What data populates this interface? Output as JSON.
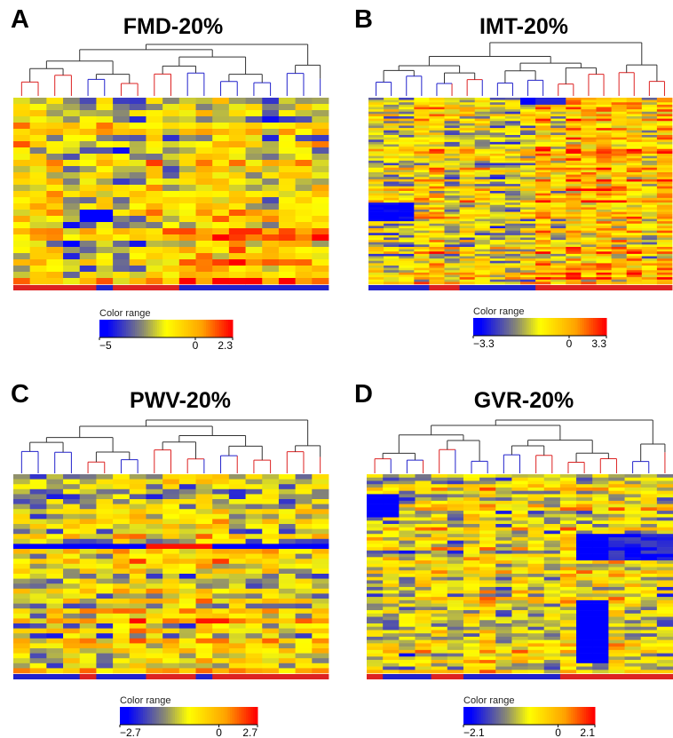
{
  "colors": {
    "low": "#0000ff",
    "midlow": "#8a8a72",
    "mid": "#ffff00",
    "high1": "#ffa200",
    "high2": "#ff0000",
    "group_red": "#dd2222",
    "group_blue": "#2222cc",
    "dendro_line": "#333333"
  },
  "legend_label": "Color range",
  "chart_data": [
    {
      "type": "heatmap",
      "panel_letter": "A",
      "title": "FMD-20%",
      "n_rows": 30,
      "n_cols": 19,
      "color_range": [
        -5,
        2.3
      ],
      "legend_ticks": [
        {
          "value": -5,
          "label": "−5"
        },
        {
          "value": 0,
          "label": "0"
        },
        {
          "value": 2.3,
          "label": "2.3"
        }
      ],
      "column_groups": [
        "red",
        "red",
        "red",
        "red",
        "red",
        "blue",
        "red",
        "red",
        "red",
        "red",
        "blue",
        "blue",
        "blue",
        "blue",
        "blue",
        "blue",
        "blue",
        "blue",
        "blue"
      ],
      "dendrogram_leaf_colors": [
        "red",
        "red",
        "red",
        "red",
        "blue",
        "blue",
        "red",
        "red",
        "red",
        "red",
        "blue",
        "blue",
        "blue",
        "blue",
        "blue",
        "blue",
        "blue",
        "blue",
        "blue"
      ],
      "seed": 11
    },
    {
      "type": "heatmap",
      "panel_letter": "B",
      "title": "IMT-20%",
      "n_rows": 80,
      "n_cols": 20,
      "color_range": [
        -3.3,
        3.3
      ],
      "legend_ticks": [
        {
          "value": -3.3,
          "label": "−3.3"
        },
        {
          "value": 0,
          "label": "0"
        },
        {
          "value": 3.3,
          "label": "3.3"
        }
      ],
      "column_groups": [
        "blue",
        "blue",
        "blue",
        "blue",
        "red",
        "red",
        "blue",
        "blue",
        "blue",
        "blue",
        "blue",
        "red",
        "red",
        "red",
        "red",
        "red",
        "red",
        "red",
        "red",
        "red"
      ],
      "dendrogram_leaf_colors": [
        "blue",
        "blue",
        "blue",
        "blue",
        "blue",
        "red",
        "red",
        "blue",
        "blue",
        "blue",
        "blue",
        "blue",
        "red",
        "red",
        "red",
        "red",
        "red",
        "red",
        "red",
        "red"
      ],
      "seed": 23
    },
    {
      "type": "heatmap",
      "panel_letter": "C",
      "title": "PWV-20%",
      "n_rows": 40,
      "n_cols": 19,
      "color_range": [
        -2.7,
        2.7
      ],
      "legend_ticks": [
        {
          "value": -2.7,
          "label": "−2.7"
        },
        {
          "value": 0,
          "label": "0"
        },
        {
          "value": 2.7,
          "label": "2.7"
        }
      ],
      "column_groups": [
        "blue",
        "blue",
        "blue",
        "blue",
        "red",
        "blue",
        "blue",
        "blue",
        "red",
        "red",
        "red",
        "blue",
        "red",
        "red",
        "red",
        "red",
        "red",
        "red",
        "red"
      ],
      "dendrogram_leaf_colors": [
        "blue",
        "blue",
        "blue",
        "blue",
        "red",
        "red",
        "blue",
        "blue",
        "red",
        "red",
        "red",
        "blue",
        "blue",
        "red",
        "red",
        "red",
        "red",
        "red",
        "red"
      ],
      "seed": 37
    },
    {
      "type": "heatmap",
      "panel_letter": "D",
      "title": "GVR-20%",
      "n_rows": 60,
      "n_cols": 19,
      "color_range": [
        -2.1,
        2.1
      ],
      "legend_ticks": [
        {
          "value": -2.1,
          "label": "−2.1"
        },
        {
          "value": 0,
          "label": "0"
        },
        {
          "value": 2.1,
          "label": "2.1"
        }
      ],
      "column_groups": [
        "red",
        "blue",
        "blue",
        "blue",
        "red",
        "red",
        "blue",
        "blue",
        "blue",
        "blue",
        "blue",
        "blue",
        "red",
        "red",
        "red",
        "red",
        "red",
        "red",
        "red"
      ],
      "dendrogram_leaf_colors": [
        "red",
        "blue",
        "blue",
        "red",
        "red",
        "blue",
        "blue",
        "blue",
        "blue",
        "blue",
        "red",
        "red",
        "red",
        "red",
        "red",
        "red",
        "blue",
        "blue",
        "red"
      ],
      "seed": 53
    }
  ]
}
